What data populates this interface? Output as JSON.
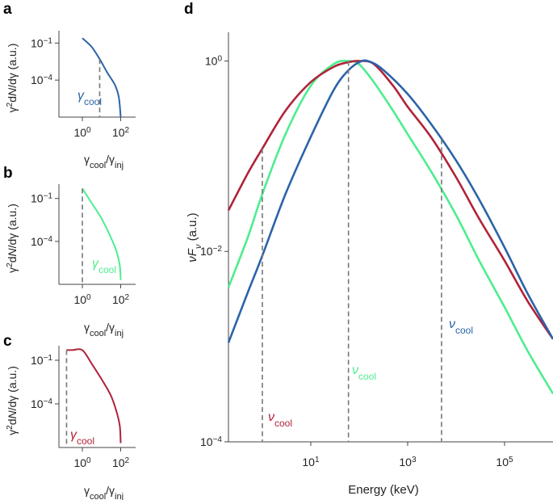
{
  "chart_data": [
    {
      "panel": "a",
      "type": "line",
      "xlabel": "γcool/γinj",
      "ylabel": "γ²dN/dγ (a.u.)",
      "x_ticks": [
        "10^0",
        "10^2"
      ],
      "y_ticks": [
        "10^-1",
        "10^-4"
      ],
      "xscale": "log",
      "yscale": "log",
      "xlim": [
        0.06,
        600
      ],
      "ylim": [
        1e-07,
        1
      ],
      "color": "#2b64a8",
      "annotation": {
        "symbol": "γ",
        "sub": "cool"
      },
      "marker_x": 8,
      "series": [
        {
          "x": [
            1,
            3,
            8,
            20,
            50,
            80,
            100
          ],
          "y": [
            0.25,
            0.05,
            0.005,
            0.0004,
            4e-05,
            4e-06,
            1e-07
          ]
        }
      ]
    },
    {
      "panel": "b",
      "type": "line",
      "xlabel": "γcool/γinj",
      "ylabel": "γ²dN/dγ (a.u.)",
      "x_ticks": [
        "10^0",
        "10^2"
      ],
      "y_ticks": [
        "10^-1",
        "10^-4"
      ],
      "xscale": "log",
      "yscale": "log",
      "xlim": [
        0.06,
        600
      ],
      "ylim": [
        1e-07,
        1
      ],
      "color": "#4ded8f",
      "annotation": {
        "symbol": "γ",
        "sub": "cool"
      },
      "marker_x": 1,
      "series": [
        {
          "x": [
            1,
            3,
            10,
            30,
            60,
            90,
            100
          ],
          "y": [
            0.5,
            0.05,
            0.004,
            0.0002,
            2e-05,
            2e-06,
            2e-07
          ]
        }
      ]
    },
    {
      "panel": "c",
      "type": "line",
      "xlabel": "γcool/γinj",
      "ylabel": "γ²dN/dγ (a.u.)",
      "x_ticks": [
        "10^0",
        "10^2"
      ],
      "y_ticks": [
        "10^-1",
        "10^-4"
      ],
      "xscale": "log",
      "yscale": "log",
      "xlim": [
        0.06,
        600
      ],
      "ylim": [
        1e-07,
        1
      ],
      "color": "#b0233a",
      "annotation": {
        "symbol": "γ",
        "sub": "cool"
      },
      "marker_x": 0.15,
      "series": [
        {
          "x": [
            0.15,
            0.3,
            1,
            3,
            10,
            30,
            60,
            90,
            100
          ],
          "y": [
            0.5,
            0.5,
            0.5,
            0.06,
            0.005,
            0.0004,
            3e-05,
            3e-06,
            2e-07
          ]
        }
      ]
    },
    {
      "panel": "d",
      "type": "line",
      "xlabel": "Energy (keV)",
      "ylabel": "νFν (a.u.)",
      "x_ticks": [
        "10^1",
        "10^3",
        "10^5"
      ],
      "y_ticks": [
        "10^0",
        "10^-2",
        "10^-4"
      ],
      "xscale": "log",
      "yscale": "log",
      "xlim": [
        0.2,
        1000000
      ],
      "ylim": [
        0.0001,
        2
      ],
      "series": [
        {
          "color": "#b0233a",
          "marker_x": 1,
          "annotation": {
            "symbol": "ν",
            "sub": "cool"
          },
          "x": [
            0.2,
            0.5,
            1,
            3,
            10,
            30,
            60,
            100,
            200,
            500,
            1000,
            3000,
            10000,
            30000,
            100000,
            300000,
            1000000
          ],
          "y": [
            0.027,
            0.066,
            0.12,
            0.3,
            0.6,
            0.87,
            0.97,
            1.0,
            0.93,
            0.55,
            0.33,
            0.16,
            0.06,
            0.022,
            0.008,
            0.003,
            0.0012
          ]
        },
        {
          "color": "#4ded8f",
          "marker_x": 60,
          "annotation": {
            "symbol": "ν",
            "sub": "cool"
          },
          "x": [
            0.2,
            0.5,
            1,
            3,
            10,
            30,
            60,
            100,
            200,
            500,
            1000,
            3000,
            10000,
            30000,
            100000,
            300000,
            1000000
          ],
          "y": [
            0.0042,
            0.014,
            0.04,
            0.17,
            0.55,
            0.93,
            1.0,
            0.92,
            0.6,
            0.3,
            0.17,
            0.07,
            0.024,
            0.008,
            0.0026,
            0.0009,
            0.00032
          ]
        },
        {
          "color": "#2b64a8",
          "marker_x": 5000,
          "annotation": {
            "symbol": "ν",
            "sub": "cool"
          },
          "x": [
            0.2,
            0.5,
            1,
            3,
            10,
            30,
            60,
            100,
            150,
            300,
            1000,
            3000,
            10000,
            30000,
            100000,
            300000,
            1000000
          ],
          "y": [
            0.0011,
            0.0037,
            0.009,
            0.04,
            0.16,
            0.5,
            0.8,
            0.97,
            1.0,
            0.82,
            0.45,
            0.22,
            0.09,
            0.035,
            0.011,
            0.0036,
            0.0012
          ]
        }
      ]
    }
  ]
}
